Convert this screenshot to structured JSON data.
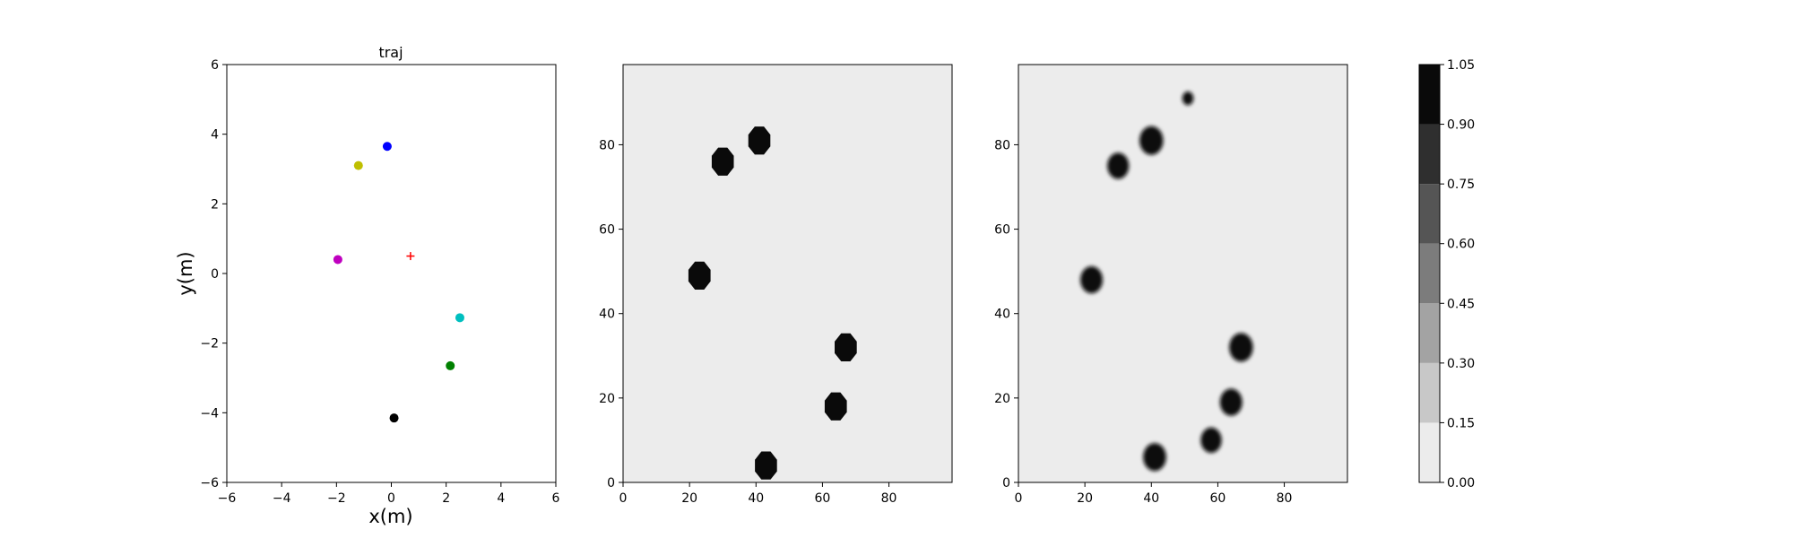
{
  "chart_data": [
    {
      "type": "scatter",
      "title": "traj",
      "xlabel": "x(m)",
      "ylabel": "y(m)",
      "xlim": [
        -6,
        6
      ],
      "ylim": [
        -6,
        6
      ],
      "xticks": [
        "−6",
        "−4",
        "−2",
        "0",
        "2",
        "4",
        "6"
      ],
      "yticks": [
        "−6",
        "−4",
        "−2",
        "0",
        "2",
        "4",
        "6"
      ],
      "grid": false,
      "points": [
        {
          "x": -0.15,
          "y": 3.65,
          "color": "#0000ff",
          "marker": "circle"
        },
        {
          "x": -1.2,
          "y": 3.1,
          "color": "#bfbf00",
          "marker": "circle"
        },
        {
          "x": -1.95,
          "y": 0.4,
          "color": "#bf00bf",
          "marker": "circle"
        },
        {
          "x": 2.5,
          "y": -1.27,
          "color": "#00bfbf",
          "marker": "circle"
        },
        {
          "x": 2.15,
          "y": -2.65,
          "color": "#008000",
          "marker": "circle"
        },
        {
          "x": 0.1,
          "y": -4.15,
          "color": "#000000",
          "marker": "circle"
        },
        {
          "x": 0.7,
          "y": 0.5,
          "color": "#ff0000",
          "marker": "plus"
        }
      ]
    },
    {
      "type": "heatmap",
      "xlim": [
        0,
        99
      ],
      "ylim": [
        0,
        99
      ],
      "xticks": [
        "0",
        "20",
        "40",
        "60",
        "80"
      ],
      "yticks": [
        "0",
        "20",
        "40",
        "60",
        "80"
      ],
      "background_value": 0.07,
      "blobs": [
        {
          "x": 30,
          "y": 76,
          "r": 3.6
        },
        {
          "x": 41,
          "y": 81,
          "r": 3.6
        },
        {
          "x": 23,
          "y": 49,
          "r": 3.6
        },
        {
          "x": 67,
          "y": 32,
          "r": 3.6
        },
        {
          "x": 64,
          "y": 18,
          "r": 3.6
        },
        {
          "x": 43,
          "y": 4,
          "r": 3.6
        }
      ]
    },
    {
      "type": "heatmap",
      "xlim": [
        0,
        99
      ],
      "ylim": [
        0,
        99
      ],
      "xticks": [
        "0",
        "20",
        "40",
        "60",
        "80"
      ],
      "yticks": [
        "0",
        "20",
        "40",
        "60",
        "80"
      ],
      "background_value": 0.07,
      "blobs": [
        {
          "x": 51,
          "y": 91,
          "r": 1.6
        },
        {
          "x": 40,
          "y": 81,
          "r": 3.4
        },
        {
          "x": 30,
          "y": 75,
          "r": 3.1
        },
        {
          "x": 22,
          "y": 48,
          "r": 3.2
        },
        {
          "x": 67,
          "y": 32,
          "r": 3.4
        },
        {
          "x": 64,
          "y": 19,
          "r": 3.2
        },
        {
          "x": 58,
          "y": 10,
          "r": 3.0
        },
        {
          "x": 41,
          "y": 6,
          "r": 3.3
        }
      ]
    }
  ],
  "colorbar": {
    "levels": [
      0.0,
      0.15,
      0.3,
      0.45,
      0.6,
      0.75,
      0.9,
      1.05
    ],
    "tick_labels": [
      "0.00",
      "0.15",
      "0.30",
      "0.45",
      "0.60",
      "0.75",
      "0.90",
      "1.05"
    ],
    "colors": [
      "#ececec",
      "#c8c8c8",
      "#a3a3a3",
      "#7c7c7c",
      "#555555",
      "#2f2f2f",
      "#0a0a0a"
    ]
  }
}
